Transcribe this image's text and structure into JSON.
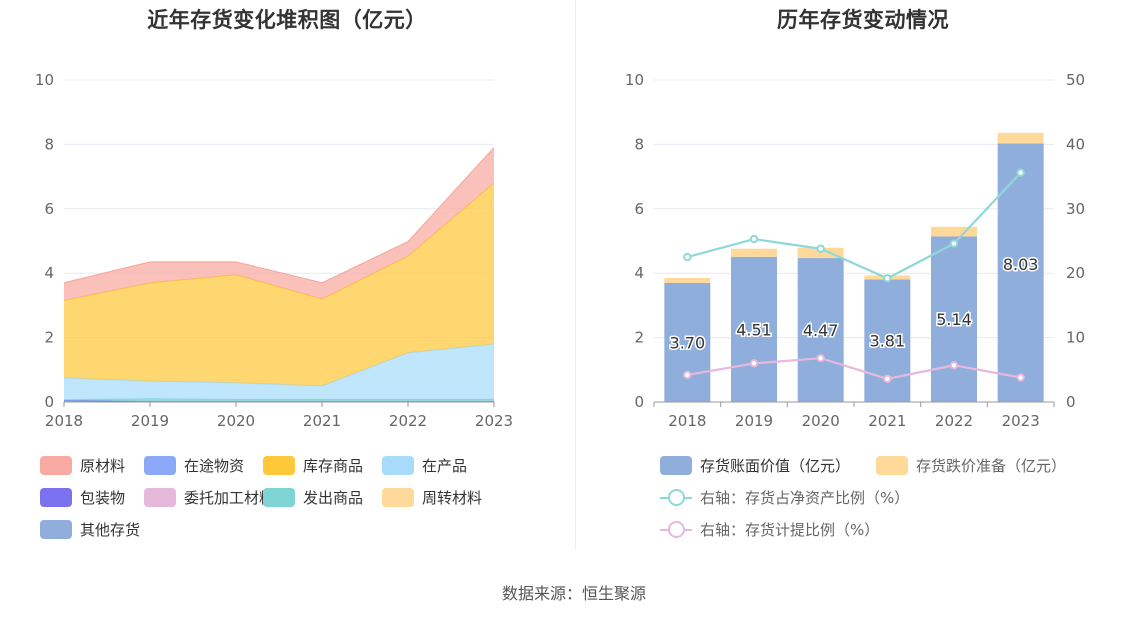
{
  "source": "数据来源：恒生聚源",
  "chart_data": [
    {
      "type": "area",
      "stacked": true,
      "title": "近年存货变化堆积图（亿元）",
      "x": [
        "2018",
        "2019",
        "2020",
        "2021",
        "2022",
        "2023"
      ],
      "ylim": [
        0,
        10
      ],
      "yticks": [
        "0",
        "2",
        "4",
        "6",
        "8",
        "10"
      ],
      "grid": true,
      "legend_position": "bottom",
      "series": [
        {
          "name": "原材料",
          "color": "#F8A9A1",
          "values": [
            0.55,
            0.65,
            0.4,
            0.5,
            0.45,
            1.1
          ]
        },
        {
          "name": "在途物资",
          "color": "#8BA8F9",
          "values": [
            0,
            0,
            0,
            0,
            0,
            0
          ]
        },
        {
          "name": "库存商品",
          "color": "#FFC73A",
          "values": [
            2.4,
            3.05,
            3.35,
            2.7,
            3.0,
            5.0
          ]
        },
        {
          "name": "在产品",
          "color": "#A6DCFA",
          "values": [
            0.68,
            0.55,
            0.52,
            0.42,
            1.45,
            1.72
          ]
        },
        {
          "name": "包装物",
          "color": "#7B72F0",
          "values": [
            0.05,
            0.02,
            0.02,
            0.02,
            0.02,
            0.02
          ]
        },
        {
          "name": "委托加工材料",
          "color": "#E6B8DC",
          "values": [
            0,
            0,
            0,
            0,
            0,
            0
          ]
        },
        {
          "name": "发出商品",
          "color": "#7FD4D4",
          "values": [
            0.02,
            0.08,
            0.06,
            0.06,
            0.06,
            0.06
          ]
        },
        {
          "name": "周转材料",
          "color": "#FFD99A",
          "values": [
            0.03,
            0.05,
            0.05,
            0.05,
            0.06,
            0.07
          ]
        },
        {
          "name": "其他存货",
          "color": "#8FAEDC",
          "values": [
            0,
            0,
            0,
            0,
            0,
            0
          ]
        }
      ]
    },
    {
      "type": "bar",
      "stacked": true,
      "title": "历年存货变动情况",
      "x": [
        "2018",
        "2019",
        "2020",
        "2021",
        "2022",
        "2023"
      ],
      "ylim": [
        0,
        10
      ],
      "yticks": [
        "0",
        "2",
        "4",
        "6",
        "8",
        "10"
      ],
      "y2lim": [
        0,
        50
      ],
      "y2ticks": [
        "0",
        "10",
        "20",
        "30",
        "40",
        "50"
      ],
      "grid": true,
      "legend_position": "bottom",
      "bar_series": [
        {
          "name": "存货账面价值（亿元）",
          "color": "#8FAEDC",
          "values": [
            3.7,
            4.51,
            4.47,
            3.81,
            5.14,
            8.03
          ],
          "labels": [
            "3.70",
            "4.51",
            "4.47",
            "3.81",
            "5.14",
            "8.03"
          ]
        },
        {
          "name": "存货跌价准备（亿元）",
          "color": "#FFD99A",
          "values": [
            0.15,
            0.25,
            0.32,
            0.12,
            0.3,
            0.33
          ]
        }
      ],
      "line_series": [
        {
          "name": "右轴：存货占净资产比例（%）",
          "color": "#8ED8D8",
          "axis": "right",
          "values": [
            22.5,
            25.3,
            23.8,
            19.2,
            24.6,
            35.6
          ]
        },
        {
          "name": "右轴：存货计提比例（%）",
          "color": "#E6B8DC",
          "axis": "right",
          "values": [
            4.2,
            6.0,
            6.8,
            3.6,
            5.7,
            3.8
          ]
        }
      ]
    }
  ]
}
